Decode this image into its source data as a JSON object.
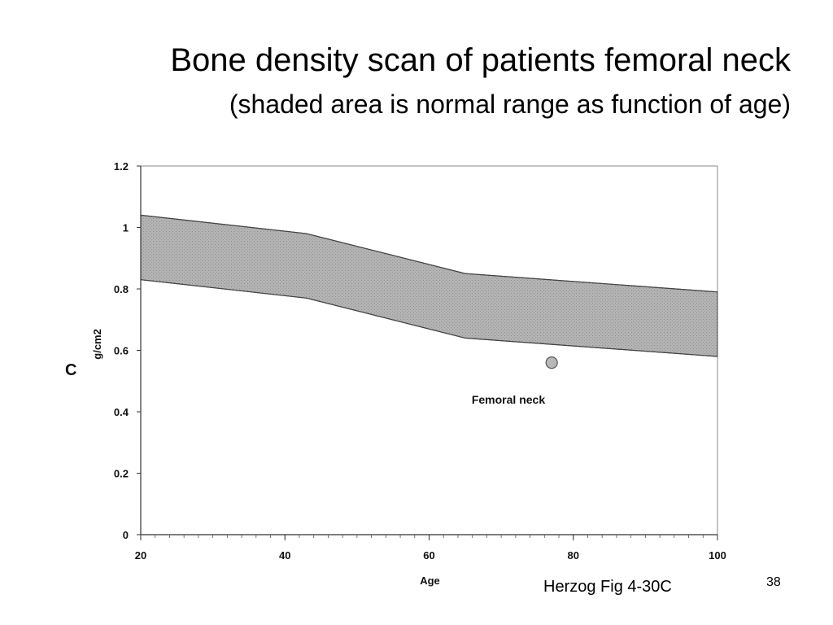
{
  "slide": {
    "title": "Bone density scan of patients femoral neck",
    "subtitle": "(shaded area is normal range as function of age)",
    "figure_label": "C",
    "citation": "Herzog Fig  4-30C",
    "slide_number": "38"
  },
  "chart_data": {
    "type": "area",
    "title": "",
    "xlabel": "Age",
    "ylabel": "g/cm2",
    "xlim": [
      20,
      100
    ],
    "ylim": [
      0,
      1.2
    ],
    "x_ticks": [
      "20",
      "40",
      "60",
      "80",
      "100"
    ],
    "y_ticks": [
      "0",
      "0.2",
      "0.4",
      "0.6",
      "0.8",
      "1",
      "1.2"
    ],
    "grid": false,
    "normal_range": {
      "x": [
        20,
        43,
        65,
        100
      ],
      "upper": [
        1.04,
        0.98,
        0.85,
        0.79
      ],
      "lower": [
        0.83,
        0.77,
        0.64,
        0.58
      ]
    },
    "patient_point": {
      "x": 77,
      "y": 0.56
    },
    "annotation": "Femoral neck",
    "colors": {
      "band_fill": "#b3b3b3",
      "band_stroke": "#444444",
      "point_fill": "#b8b8b8",
      "point_stroke": "#555555",
      "axis": "#333333"
    }
  }
}
